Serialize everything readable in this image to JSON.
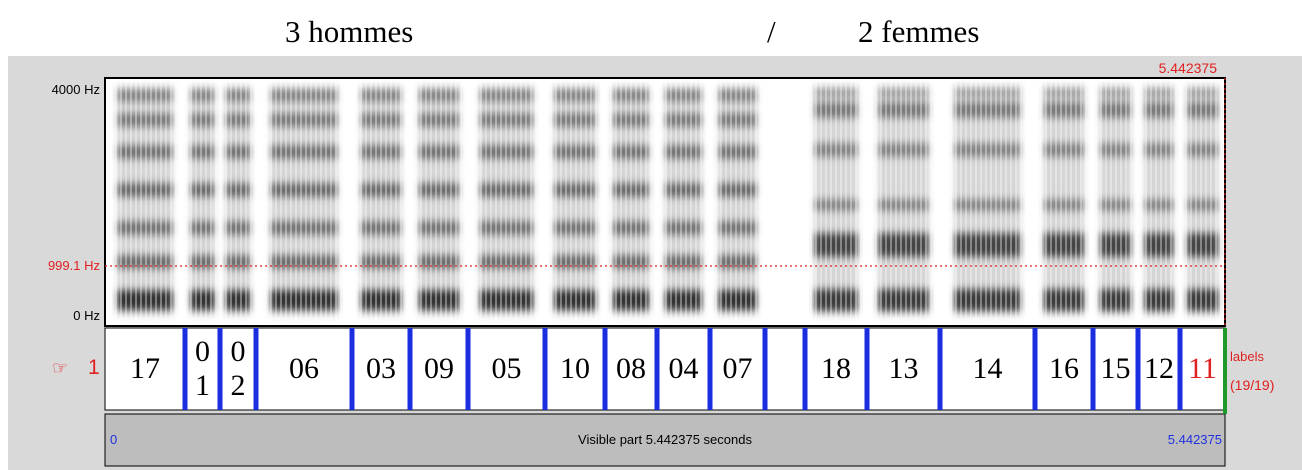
{
  "header": {
    "left": "3 hommes",
    "separator": "/",
    "right": "2 femmes"
  },
  "spectrogram": {
    "cursor_time": "5.442375",
    "freq_top": "4000 Hz",
    "freq_cursor": "999.1 Hz",
    "freq_bottom": "0 Hz"
  },
  "tier": {
    "pointer": "☞",
    "number": "1",
    "name": "labels",
    "count": "(19/19)",
    "labels": [
      "17",
      "01",
      "02",
      "06",
      "03",
      "09",
      "05",
      "10",
      "08",
      "04",
      "07",
      "18",
      "13",
      "14",
      "16",
      "15",
      "12",
      "11"
    ]
  },
  "footer": {
    "start": "0",
    "caption": "Visible part 5.442375 seconds",
    "end": "5.442375"
  }
}
